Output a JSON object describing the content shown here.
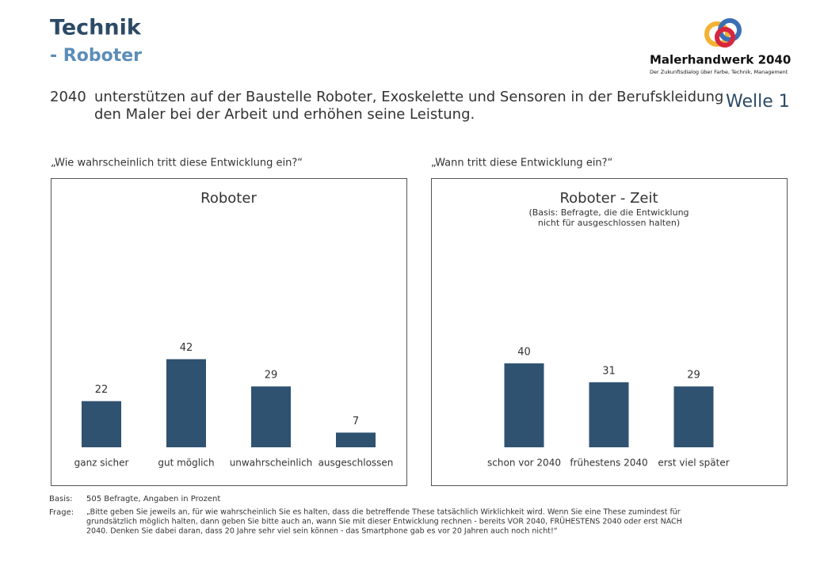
{
  "header": {
    "title": "Technik",
    "subtitle": "- Roboter",
    "statement_year": "2040",
    "statement_lines": [
      "unterstützen auf der Baustelle Roboter, Exoskelette und Sensoren in der Berufskleidung",
      "den Maler bei der Arbeit und erhöhen seine Leistung."
    ],
    "wave": "Welle 1",
    "logo_name": "Malerhandwerk 2040",
    "logo_tagline": "Der Zukunftsdialog über Farbe, Technik, Management"
  },
  "chart_data": [
    {
      "type": "bar",
      "question": "„Wie wahrscheinlich tritt diese Entwicklung ein?“",
      "title": "Roboter",
      "categories": [
        "ganz sicher",
        "gut möglich",
        "unwahrscheinlich",
        "ausgeschlossen"
      ],
      "values": [
        22,
        42,
        29,
        7
      ],
      "color": "#2f5271"
    },
    {
      "type": "bar",
      "question": "„Wann tritt diese Entwicklung ein?“",
      "title": "Roboter - Zeit",
      "subtitle": [
        "(Basis: Befragte, die die Entwicklung",
        "nicht für ausgeschlossen halten)"
      ],
      "categories": [
        "schon vor 2040",
        "frühestens 2040",
        "erst viel später"
      ],
      "values": [
        40,
        31,
        29
      ],
      "color": "#2f5271"
    }
  ],
  "footer": {
    "basis_label": "Basis:",
    "basis": "505 Befragte, Angaben in Prozent",
    "question_label": "Frage:",
    "question_lines": [
      "„Bitte geben Sie jeweils an, für wie wahrscheinlich Sie es halten, dass die betreffende These tatsächlich Wirklichkeit wird. Wenn Sie eine These zumindest für",
      "grundsätzlich möglich halten, dann geben Sie bitte auch an, wann Sie mit dieser Entwicklung rechnen  - bereits VOR 2040, FRÜHESTENS 2040 oder erst NACH",
      "2040. Denken Sie dabei daran, dass 20 Jahre sehr viel sein können - das Smartphone gab es vor 20 Jahren  auch noch nicht!“"
    ]
  }
}
